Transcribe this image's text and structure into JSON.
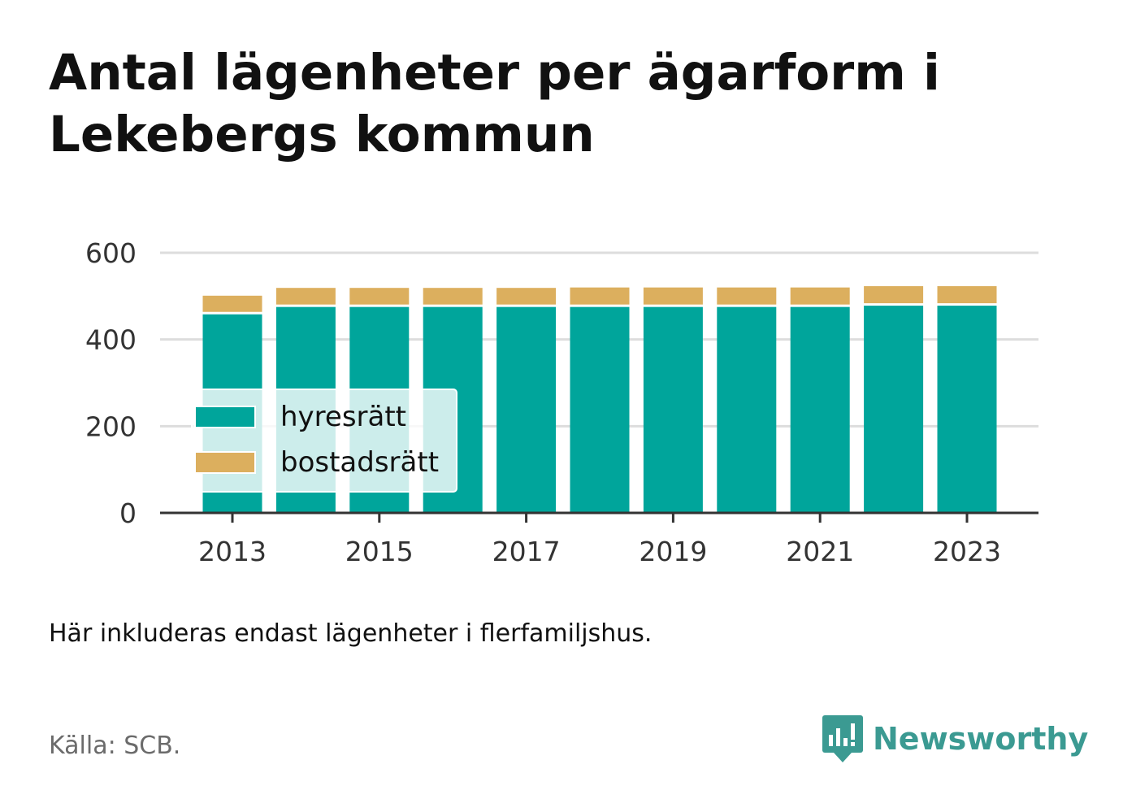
{
  "header": {
    "title": "Antal lägenheter per ägarform i Lekebergs kommun"
  },
  "chart_data": {
    "type": "bar",
    "stacked": true,
    "categories": [
      "2013",
      "2014",
      "2015",
      "2016",
      "2017",
      "2018",
      "2019",
      "2020",
      "2021",
      "2022",
      "2023"
    ],
    "series": [
      {
        "name": "hyresrätt",
        "color": "#00a59b",
        "values": [
          458,
          475,
          475,
          475,
          475,
          475,
          475,
          475,
          475,
          478,
          478
        ]
      },
      {
        "name": "bostadsrätt",
        "color": "#dcaf5e",
        "values": [
          43,
          44,
          44,
          44,
          44,
          45,
          45,
          45,
          45,
          45,
          45
        ]
      }
    ],
    "x_tick_labels": [
      "2013",
      "2015",
      "2017",
      "2019",
      "2021",
      "2023"
    ],
    "y_tick_labels": [
      "0",
      "200",
      "400",
      "600"
    ],
    "ylim": [
      0,
      600
    ],
    "grid": true,
    "legend_position": "bottom-left"
  },
  "footer": {
    "note": "Här inkluderas endast lägenheter i flerfamiljshus.",
    "source": "Källa: SCB.",
    "brand": "Newsworthy",
    "brand_color": "#3b9a92"
  }
}
